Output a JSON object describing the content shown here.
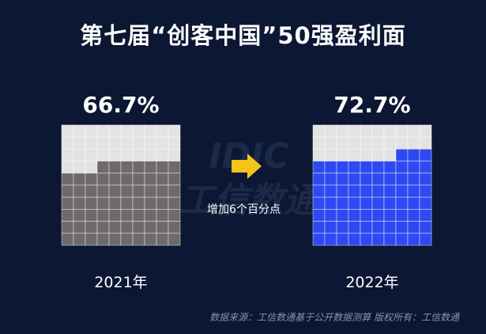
{
  "title": "第七届“创客中国”50强盈利面",
  "arrow_note": "增加6个百分点",
  "source": "数据来源：工信数通基于公开数据测算  版权所有：工信数通",
  "watermark": "IDIC\n工信数通",
  "colors": {
    "background": "#0b1733",
    "empty_cell": "#e3e3e3",
    "filled_2021": "#6d6a69",
    "filled_2022": "#2f49f2",
    "arrow": "#f7c21b",
    "grid_line": "#ffffff"
  },
  "chart_data": {
    "type": "waffle",
    "grid": {
      "rows": 10,
      "cols": 10
    },
    "series": [
      {
        "year": "2021年",
        "value": 66.7,
        "value_label": "66.7%",
        "filled_cells": 67
      },
      {
        "year": "2022年",
        "value": 72.7,
        "value_label": "72.7%",
        "filled_cells": 73
      }
    ],
    "annotation": "增加6个百分点"
  }
}
